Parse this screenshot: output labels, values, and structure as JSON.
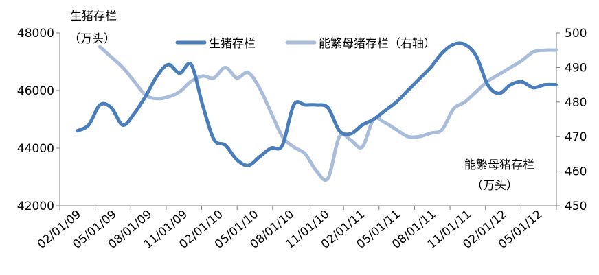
{
  "chart_data": {
    "type": "line",
    "categories": [
      "02/01/09",
      "05/01/09",
      "08/01/09",
      "11/01/09",
      "02/01/10",
      "05/01/10",
      "08/01/10",
      "11/01/10",
      "02/01/11",
      "05/01/11",
      "08/01/11",
      "11/01/11",
      "02/01/12",
      "05/01/12"
    ],
    "x": [
      "2009-01",
      "2009-02",
      "2009-03",
      "2009-04",
      "2009-05",
      "2009-06",
      "2009-07",
      "2009-08",
      "2009-09",
      "2009-10",
      "2009-11",
      "2009-12",
      "2010-01",
      "2010-02",
      "2010-03",
      "2010-04",
      "2010-05",
      "2010-06",
      "2010-07",
      "2010-08",
      "2010-09",
      "2010-10",
      "2010-11",
      "2010-12",
      "2011-01",
      "2011-02",
      "2011-03",
      "2011-04",
      "2011-05",
      "2011-06",
      "2011-07",
      "2011-08",
      "2011-09",
      "2011-10",
      "2011-11",
      "2011-12",
      "2012-01",
      "2012-02",
      "2012-03",
      "2012-04",
      "2012-05",
      "2012-06",
      "2012-07"
    ],
    "left_axis": {
      "title_line1": "生猪存栏",
      "title_line2": "（万头）",
      "ylim": [
        42000,
        48000
      ],
      "ticks": [
        "42000",
        "44000",
        "46000",
        "48000"
      ]
    },
    "right_axis": {
      "title_line1": "能繁母猪存栏",
      "title_line2": "（万头）",
      "ylim": [
        450,
        500
      ],
      "ticks": [
        "450",
        "460",
        "470",
        "480",
        "490",
        "500"
      ]
    },
    "legend_position": "top",
    "series": [
      {
        "name": "生猪存栏",
        "axis": "left",
        "color": "#4a7ebb",
        "values": [
          44600,
          44800,
          45500,
          45400,
          44800,
          45200,
          45800,
          46500,
          46900,
          46600,
          46900,
          45500,
          44300,
          44100,
          43600,
          43400,
          43700,
          44000,
          44100,
          45500,
          45500,
          45500,
          45400,
          44600,
          44500,
          44800,
          45000,
          45300,
          45600,
          46000,
          46400,
          46800,
          47300,
          47600,
          47600,
          47200,
          46200,
          45900,
          46200,
          46300,
          46100,
          46200,
          46200
        ]
      },
      {
        "name": "能繁母猪存栏（右轴）",
        "axis": "right",
        "color": "#a9bcd9",
        "values": [
          null,
          null,
          496,
          493,
          490,
          486,
          482,
          481,
          481.5,
          483,
          486,
          487.5,
          487,
          490,
          487,
          488.5,
          484,
          477,
          470,
          467,
          465,
          460,
          458,
          470,
          469,
          467,
          475,
          474,
          472,
          470,
          470,
          471,
          472,
          478,
          480,
          483,
          486,
          488,
          490,
          492,
          494.5,
          495,
          495
        ]
      }
    ]
  }
}
